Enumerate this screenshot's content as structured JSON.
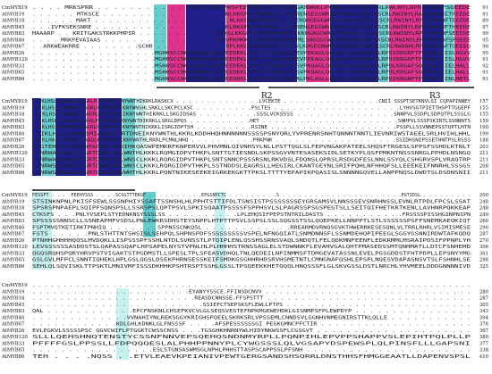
{
  "figure": {
    "colors": {
      "identical": "#1f1f8c",
      "high_similarity": "#e0338f",
      "medium_similarity": "#66cccc",
      "low_similarity": "#c7f1f1"
    },
    "region_labels": [
      {
        "id": "R2",
        "text": "R2"
      },
      {
        "id": "R3",
        "text": "R3"
      }
    ],
    "blocks": [
      {
        "rows": [
          {
            "name": "CmMYB19",
            "seq": ". . . . MRKSPRR . . . . . . . . . . . DSKKCLKKGPWSPEEDEKLLNYVIKNGGRNWRKLPKAAGLLRCGKSCRLRWLNYLRPDIKRGNFSQEEDE",
            "pos": "91"
          },
          {
            "name": "AtMYB19",
            "seq": ". . . . . . MTKSCE . . . . . . . . . . . . . . . . .NLKKGPWTPEEDELLLSYIRENGEGSWRSLPKAAGLLRCGKSCRLRWINYLRADLKRGNITPEEDE",
            "pos": "91"
          },
          {
            "name": "AtMYB18",
            "seq": ". . . . . . MAKT . . . . . . . . . . . . . . . . . . .NLKKGAWTPEEDEKLLSYIRQHGEGGWRSLPSKAGLKRCGKSCRLRWINYLRPDLKRGNFTEEEDE",
            "pos": "89"
          },
          {
            "name": "AtMYB45",
            "seq": ". . .IVFKSEKSNRE . . . . . . . . . . . . . . . . . .KLRKGPWTPEEDDKLLSYIRENGEGSWRSLPKAAGLLRCGKSCRLRWINYLRPDLKRGNFTHEEDE",
            "pos": "97"
          },
          {
            "name": "AtMYB83",
            "seq": "MAAARP . . KRITGAKSTRKKPMPIR . . . . . . . . . . DSKKGLKKGPWSPEEDEKLMNYIKKHGAGCWRSLPKAAGLLRCGKSCRLRWINYLRPDLKRGNFSEEEDE",
            "pos": "99"
          },
          {
            "name": "AtMYB46",
            "seq": ". . . . MRKPEVAIAAS . . . . . . . . . . . . . . . .THQVKKMKKGLWSPEEDSKLMQYMLSNGQGCWSDVAKNAGLQRCGKSCRLRWINYLRPDLKRGAFSPQEEE",
            "pos": "95"
          },
          {
            "name": "AtMYB67",
            "seq": ". .ARKWEAKRRE . . . . . . . .GCHR . . . . . . . . . .RPLKKGSWTAAEDSILTDYVLKHGEGNWNAVQKHSGLFRCGKSCRLRWANHLRPNLKKGAFTQEEEQ",
            "pos": "90"
          },
          {
            "name": "AtMYB26",
            "seq": ". . . . . . . . . . . . . . . . .MGHHSCCNKQKVKRGLWSPEEDEKLIRYITTHGYGCWSEVPEKAGLQRCGKSCRLRWINYLRPDIRRGRFTPEEEKLIISLHGVV",
            "pos": "95"
          },
          {
            "name": "AtMYB120",
            "seq": ". . . . . . . . . . . . . . . . .MGHHSCCNKQKVKRGLWSPEEDEKLVRYITTHGYGCWSEVPEKAGLQRCGKSCRLRWINYLRPDIRRGRFTPEEEKLIISLHGVV",
            "pos": "91"
          },
          {
            "name": "AtMYB33",
            "seq": ". . . . . . . . . . . . . . . . .MSHHSCCNKQKVKRGLWSPEEDEKLVRYITTHGHGCWSSVPKQAGLQRCGKSCRLRWINYLRPDLKRGAFSQDEEQLIIELHALL",
            "pos": "92"
          },
          {
            "name": "AtMYB65",
            "seq": ". . . . . . . . . . . . . . . . .MSHHSCCNKQKVKRGLWSPEEDEKLVRYITTHGHGCWSSVPKQAGLQRCGKSCRLRWINYLRPDLKRGAFSQDEEQLIIELHALL",
            "pos": "91"
          },
          {
            "name": "AtMYB86",
            "seq": ". . . . . . . . . . . . . . . . .MGHHSCCNKQKVKRGLWSPEEDDKLIRYINTHGYSNWRALPKLAGLLRCGKSCRLRWINYLRPDIKRGNFTPEEEDTIINLHETL",
            "pos": "91"
          }
        ]
      },
      {
        "rows": [
          {
            "name": "CmMYB19",
            "seq": "LIIKLHSLLGNKWSLIAGRLPGRTDNEIKNYWNTHIKRKLRASKCX . . . . . . . . . . . . . .LVCEKTE . . . . . . . . . . . . . . . .CNII SSSPTSETKNVLSI CQPAPINNEY",
            "pos": "157"
          },
          {
            "name": "AtMYB19",
            "seq": "LVIKLHSLLGNRWSLIAGRLPGRTDNEIKNYWNSHLSRKLLSKCPCLKSC . . . . . . . . .PSLTES . . . . . . . . . . . . . . . . . . . .LYHVSGTPIETTHSPTTGGEPF",
            "pos": "155"
          },
          {
            "name": "AtMYB18",
            "seq": "LIIKLHSLLGNKWSLIAGRLPGRTDNEIKNYWNTHIKRKLLSKGIDSAS . . . . . . . . .SSSLVCKSSSS . . . . . . . . . . . . . . .SNNPVLSSDPLSDPQTPLSSSLG",
            "pos": "155"
          },
          {
            "name": "AtMYB45",
            "seq": "LIIKLHSLLGNKWSLIAGRLPGRTDNEIKNYWNTHIKRKLLSRGLDPQS . . . . . . . . . .HET . . . . . . . . . . . . . . . . . . . . . .SNHPVLSSSPSKIRTLSSNNNTS",
            "pos": "159"
          },
          {
            "name": "AtMYB83",
            "seq": "LIIKLHSLLGNKWSLIAGRLPGRTDNEIKNYWNTHIKRKLISRGIDPTSH . . . . . . . . .RSINE . . . . . . . . . . . . . . . . . . . .PSSPLLSSVNNEPSSTQPTLHTN",
            "pos": "160"
          },
          {
            "name": "AtMYB46",
            "seq": "LIIKLHSLLGNKWSMIAARLPGRTDNEIKNYWNTHLKKRLKDDHHQHNNNNNNSSSSPSNYQRLYVPRENRSNHTQNNNTNNTLIEVNRIWSTAEELSRLHVIHLHHL",
            "pos": "199"
          },
          {
            "name": "AtMYB67",
            "seq": "LIIKLHALLGNRWSLIAAQLPGRTDNEIKNYWNTHLRKRLPCMNLHHQ . . . . . . . . . .PRKPNK . . . . . . . . . . . . . . . . . . .SSIDHSNIPSSETHNTPSLRSSS",
            "pos": "188"
          },
          {
            "name": "AtMYB26",
            "seq": "VIGTEHWLLSHSVWHSPMSTIRRIHKQASWPEMKRFKNPERVVLPHVMNLQIVNHSYLNLLPSTTQGLSLFEPVNGAKPATEELSHQSFTRGESLSPPSFSSHDLKTNLT",
            "pos": "203"
          },
          {
            "name": "AtMYB120",
            "seq": "LGNRWAAIASQLPGRTDNEIKNLWNTHLKKKLRQMGIDPVTHKPLSNTTGTIESNDLSKPSSGVVNTESASEKSIDLSETKYPLQSFPMKNTNSSSNRGLPPHDLNSNGQ",
            "pos": "211"
          },
          {
            "name": "AtMYB33",
            "seq": "LGNRWAQIAAQLPGRTDNEIKNLWNSCLKKKLRQRGIDPVTHKPLSNTSNNCPSSSRSNLRKVDSLFDQNSLQPRSLRSDGDFESLNNLSSYQLCSHGRVSPLVRAQTRP",
            "pos": "211"
          },
          {
            "name": "AtMYB65",
            "seq": "LGNRWSQIAARLPGRTDNEIKNLWNSCLKKKLRQRGIDPVTHKPLSSTNDDSLEAGRSLLHEGIRLCKANTGEYNLSRIFPQHLNFHHQFSLLEEEKEIFNNRHLSSSGS",
            "pos": "208"
          },
          {
            "name": "AtMYB86",
            "seq": "LGNRWSQIAARLPGRTDNEIKNVWHTHLKKRLPQNTNIKESEEKEIGRKEKGKTTPKSLTTTTYEPAPIKPQASISLSNNNNGQVELLANPPNQSLDWDTSLDSDNSNII",
            "pos": "211"
          }
        ]
      },
      {
        "rows": [
          {
            "name": "CmMYB19",
            "seq": "FESSFT . . . .FEEHYSSS . . . .SCSGTTTEKGF . . . . . . . . . .EPGSNYCTC . . . . . . . . .S . . . . . . . . . . . . . . . . . . . . . .PGTIDSL . . . . . . . . .",
            "pos": "200"
          },
          {
            "name": "AtMYB19",
            "seq": "STSINKNPNLPKISFSEWLSSSNPHIYSSAFTSSNSHLHLPPHTSTTIFDLTSNSISTPSSSSSSSEYGRSAMSVLNNSSSEVSNRHNSSLEVNLRTPDLFPCSLSSAT",
            "pos": "248"
          },
          {
            "name": "AtMYB18",
            "seq": "SPSRSPNPAEPLSQIPFSQNSPSLLSSRSPSLQPTPSVLSPKISQAATPSSSSFSPPHSVLSLPAGRSSPSGSPEGTSLLSEITQIFHETKRTKENLLAVHNRPQKKEAP",
            "pos": "248"
          },
          {
            "name": "AtMYB45",
            "seq": "CTKSFS . . .PNLYVSEPLSTYEDNKNSYSSSLSS . . . . . . . . . .LPLEHQSIFPEPSTNTRILDASTS . . . . . . . . . . .FRSSSSPISSHGINPNIPN",
            "pos": "249"
          },
          {
            "name": "AtMYB83",
            "seq": "SPSSSSSNNSCLLSSNEAPMFVSDSLPNLEWKRSDHSTEYSNPPLHTPTTPSVLSSPSLSSLSQGSSTSSLQQEPKELLNNPPTLSTLSSSSSSPSFFSNEMKAEQKIQT",
            "pos": "260"
          },
          {
            "name": "AtMYB46",
            "seq": "FSPTMVQTKETIRKTPNHIQ . . . . . . .SPPNSSCNKQSL . . . . . . . . . . . .RREARMDVRNQSGVKTHWERRKESESQNLVLTRRLRHRLVSIMISMESE",
            "pos": "290"
          },
          {
            "name": "AtMYB67",
            "seq": "FSTS . . . . .PNLSTHTTNTSHSISLSEHPQLSHPNSPDFSSSSSSSSSVSPELNFNGQIATLSNMDNNSFLSSNMDEHQPIPEEGLSGGYGSNNIRDWTAFKQDQ",
            "pos": "287"
          },
          {
            "name": "AtMYB26",
            "seq": "PTNHHGHHHHQQSLMVDQKLLISPSSSPFSSHLNTDLSVNSSTLPTQIPLENLQSSHSSRNSVAQLSNDQTLFELQDKMNFEENFLEDKRMMLMSRAIPDSIFPPNPLYH",
            "pos": "270"
          },
          {
            "name": "AtMYB120",
            "seq": "LEVSSSSSSASDDSTSLQAPASSQAFLHPSAPELNYSTVPNLHLPLHHHHSTRNSSAGLELSTDWNNKFLEVAHVGALQHTPMASEDSSMTQNHMATLLDTCFSNHEMD",
            "pos": "306"
          },
          {
            "name": "AtMYB33",
            "seq": "QGQSRQHSPQRYHRVPSTVIGAKTSTPGDMSTLLSPESLTPLSFEASVDHQLTNLQEDEILNPINMMSFTDMGEVATASSNLEVELPGSGDDSTFHTPDPLLEPSNYYMG",
            "pos": "301"
          },
          {
            "name": "AtMYB65",
            "seq": "GSLGVLMFPCLSNNTIQHEKLHPLGSLQGSLDSEKPHRNSESSKEIFSMDKGSGHHRHDSRVHSMETNTLCMNGNAFQSHLEPSPLNQESVDAPASNSVTSLFSHNHLSE",
            "pos": "298"
          },
          {
            "name": "AtMYB86",
            "seq": "SEHLQLSQVISKLTTPSKTLMNIVMFISSSDKHHKPSHTRSPTSSHLGSSLTPSQEEKKHETQQQLHNQSSSFLGLSKVGSSLDSTLNRCHLYHVMEELDDDGNNNNIVD",
            "pos": "325"
          }
        ]
      },
      {
        "rows": [
          {
            "name": "CmMYB19",
            "seq": ". . . . . . . . . . . . . . . . . . . . . . . . . . . . . . . . . . . . . . . . . . . . . . . . . . . . . . . . . . . . . . . . . . . . . . .",
            "pos": ""
          },
          {
            "name": "AtMYB19",
            "seq": ". . . . . . . . . . . . . . . . . . . . . . .EYANYYSSCE.FFINSDCNVV . . . . . . . . . . . . . . . . . . . . . . . . . . . . . .",
            "pos": "280"
          },
          {
            "name": "AtMYB18",
            "seq": ". . . . . . . . . . . . . . . . . . . . . . . .REASDCNNSSE.FFSPSTTT . . . . . . . . . . . . . . . . . . . . . . . . . . . . . .",
            "pos": "287"
          },
          {
            "name": "AtMYB45",
            "seq": ". . . . . . . . . . . . . . . . . . . . . . . . .SSIEFCTSEPSKSFLEWLLPTPS . . . . . . . . . . . . . . . . . . . . . . . . . . .",
            "pos": "305"
          },
          {
            "name": "AtMYB83",
            "seq": "QAL . . . . . . . . . . . .EPCFNSKNLCHSEFKVCVLGLSEQSVESTEFNPKMGEWEHDKLGISNMPSFPLEWPDYP . . . . . . . . . . . . . . . .",
            "pos": "343"
          },
          {
            "name": "AtMYB46",
            "seq": ". . . . . . . . . . . . .VVNAHIYNLREKSGGYKRIGHSPQEELSKRKSRLVPSSEMLCNNDSVLGGNHVNMEGNIRSTTKLQLLE . . . . . . . . . . .",
            "pos": "394"
          },
          {
            "name": "AtMYB67",
            "seq": ". . . . . . . . . . . .KDLGHLKDNKLGLFNSSSF . . . .AFSPESSSSSSGI PEGKGMNCPFCTIR . . . . . . . . . . . . . . . . . . . . .",
            "pos": "378"
          },
          {
            "name": "AtMYB26",
            "seq": "EVLEGKVLSSSSSPSC GGVCWIFLPTGGKTCWSSCNSS . . .TGSGHKHNRNYWLHIDYNKWSSFLCGSGVT . . . . . . . . . . . . . . . . . . . . .",
            "pos": "367"
          },
          {
            "name": "AtMYB120",
            "seq": "SLLLQEHSHNQTENSTYCSSNFNNVEPSQEHQSNDNMYRPLLPQNPIHLEPVPPSHAPPVSLEPIHTPQLPLLP",
            "pos": "380"
          },
          {
            "name": "AtMYB33",
            "seq": "PFFFFGSLPPSSLLFDPQQQESLALPHHPPNNYPLCYWGSSSLQLVGSAPYDSPEWSPLQLPINSFLLLGAPSNI",
            "pos": "377"
          },
          {
            "name": "AtMYB65",
            "seq": ". . . . . . . . . . . . . . . . .ESLSTGNSASWMSGLNPHLPHHSTTASPSCAPPSSLPFSNH . . . . . . . . . . . . . . . . . . . . . . .",
            "pos": "338"
          },
          {
            "name": "AtMYB86",
            "seq": "TEH . . . .NQSS . .ETVLEAEVKPEIANIVPEWTGERGSANDSHSQRRLDNSTHHSFHMGGEAATLLDAPENVSPSL",
            "pos": "410"
          }
        ]
      }
    ]
  }
}
